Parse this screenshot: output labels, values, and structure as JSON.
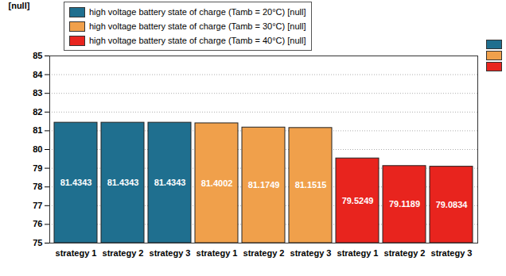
{
  "chart_data": {
    "type": "bar",
    "y_label": "[null]",
    "categories": [
      "strategy 1",
      "strategy 2",
      "strategy 3"
    ],
    "series": [
      {
        "name": "high voltage battery state of charge (Tamb = 20°C) [null]",
        "color": "#1f6f8f",
        "values": [
          81.4343,
          81.4343,
          81.4343
        ]
      },
      {
        "name": "high voltage battery state of charge (Tamb = 30°C) [null]",
        "color": "#f0a04b",
        "values": [
          81.4002,
          81.1749,
          81.1515
        ]
      },
      {
        "name": "high voltage battery state of charge (Tamb = 40°C) [null]",
        "color": "#e8241e",
        "values": [
          79.5249,
          79.1189,
          79.0834
        ]
      }
    ],
    "ylim": [
      75,
      85
    ],
    "yticks": [
      75,
      76,
      77,
      78,
      79,
      80,
      81,
      82,
      83,
      84,
      85
    ],
    "grid": true,
    "legend": "top-left",
    "data_labels": true
  }
}
